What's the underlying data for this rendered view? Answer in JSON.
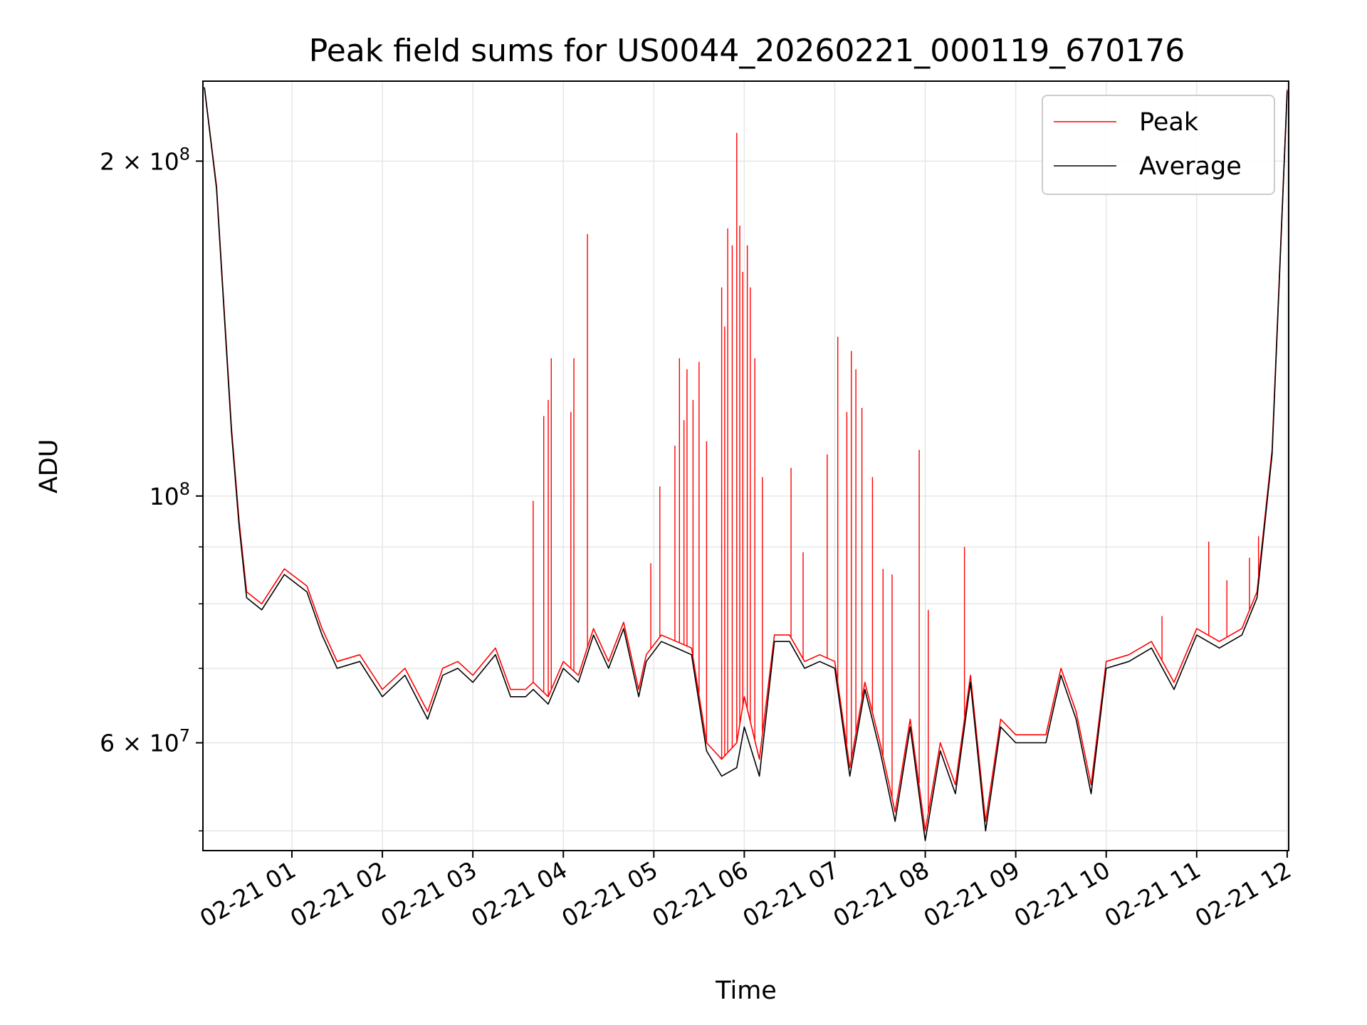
{
  "chart_data": {
    "type": "line",
    "title": "Peak field sums for US0044_20260221_000119_670176",
    "xlabel": "Time",
    "ylabel": "ADU",
    "yscale": "log",
    "xlim": [
      "02-21 00:01",
      "02-21 12:01"
    ],
    "ylim": [
      48000000,
      236000000
    ],
    "grid": true,
    "legend": {
      "location": "upper right",
      "entries": [
        "Peak",
        "Average"
      ]
    },
    "x_ticks": [
      "02-21 01",
      "02-21 02",
      "02-21 03",
      "02-21 04",
      "02-21 05",
      "02-21 06",
      "02-21 07",
      "02-21 08",
      "02-21 09",
      "02-21 10",
      "02-21 11",
      "02-21 12"
    ],
    "y_tick_labels": [
      {
        "value": 200000000,
        "mantissa": "2",
        "times": "×",
        "base": "10",
        "exponent": "8"
      },
      {
        "value": 100000000,
        "mantissa": "",
        "times": "",
        "base": "10",
        "exponent": "8"
      },
      {
        "value": 60000000,
        "mantissa": "6",
        "times": "×",
        "base": "10",
        "exponent": "7"
      }
    ],
    "y_minor_ticks": [
      50000000,
      70000000,
      80000000,
      90000000
    ],
    "series": [
      {
        "name": "Peak",
        "color": "#ff0000",
        "x": [
          "02-21 00:02",
          "02-21 00:10",
          "02-21 00:20",
          "02-21 00:25",
          "02-21 00:30",
          "02-21 00:40",
          "02-21 00:55",
          "02-21 01:10",
          "02-21 01:20",
          "02-21 01:30",
          "02-21 01:45",
          "02-21 02:00",
          "02-21 02:15",
          "02-21 02:30",
          "02-21 02:40",
          "02-21 02:50",
          "02-21 03:00",
          "02-21 03:15",
          "02-21 03:25",
          "02-21 03:35",
          "02-21 03:40",
          "02-21 03:50",
          "02-21 04:00",
          "02-21 04:10",
          "02-21 04:20",
          "02-21 04:30",
          "02-21 04:40",
          "02-21 04:50",
          "02-21 04:55",
          "02-21 05:05",
          "02-21 05:15",
          "02-21 05:25",
          "02-21 05:35",
          "02-21 05:45",
          "02-21 05:55",
          "02-21 06:00",
          "02-21 06:10",
          "02-21 06:20",
          "02-21 06:30",
          "02-21 06:40",
          "02-21 06:50",
          "02-21 07:00",
          "02-21 07:10",
          "02-21 07:20",
          "02-21 07:30",
          "02-21 07:40",
          "02-21 07:50",
          "02-21 08:00",
          "02-21 08:10",
          "02-21 08:20",
          "02-21 08:30",
          "02-21 08:40",
          "02-21 08:50",
          "02-21 09:00",
          "02-21 09:10",
          "02-21 09:20",
          "02-21 09:30",
          "02-21 09:40",
          "02-21 09:50",
          "02-21 10:00",
          "02-21 10:15",
          "02-21 10:30",
          "02-21 10:45",
          "02-21 11:00",
          "02-21 11:15",
          "02-21 11:30",
          "02-21 11:40",
          "02-21 11:50",
          "02-21 12:00"
        ],
        "y": [
          233000000,
          190000000,
          115000000,
          95000000,
          82000000,
          80000000,
          86000000,
          83000000,
          76000000,
          71000000,
          72000000,
          67000000,
          70000000,
          64000000,
          70000000,
          71000000,
          69000000,
          73000000,
          67000000,
          67000000,
          68000000,
          66000000,
          71000000,
          69000000,
          76000000,
          71000000,
          77000000,
          67000000,
          72000000,
          75000000,
          74000000,
          73000000,
          60000000,
          58000000,
          60000000,
          66000000,
          58000000,
          75000000,
          75000000,
          71000000,
          72000000,
          71000000,
          57000000,
          68000000,
          60000000,
          52000000,
          63000000,
          50000000,
          60000000,
          55000000,
          69000000,
          51000000,
          63000000,
          61000000,
          61000000,
          61000000,
          70000000,
          64000000,
          55000000,
          71000000,
          72000000,
          74000000,
          68000000,
          76000000,
          74000000,
          76000000,
          82000000,
          110000000,
          232000000
        ]
      },
      {
        "name": "Average",
        "color": "#000000",
        "x": [
          "02-21 00:02",
          "02-21 00:10",
          "02-21 00:20",
          "02-21 00:25",
          "02-21 00:30",
          "02-21 00:40",
          "02-21 00:55",
          "02-21 01:10",
          "02-21 01:20",
          "02-21 01:30",
          "02-21 01:45",
          "02-21 02:00",
          "02-21 02:15",
          "02-21 02:30",
          "02-21 02:40",
          "02-21 02:50",
          "02-21 03:00",
          "02-21 03:15",
          "02-21 03:25",
          "02-21 03:35",
          "02-21 03:40",
          "02-21 03:50",
          "02-21 04:00",
          "02-21 04:10",
          "02-21 04:20",
          "02-21 04:30",
          "02-21 04:40",
          "02-21 04:50",
          "02-21 04:55",
          "02-21 05:05",
          "02-21 05:15",
          "02-21 05:25",
          "02-21 05:35",
          "02-21 05:45",
          "02-21 05:55",
          "02-21 06:00",
          "02-21 06:10",
          "02-21 06:20",
          "02-21 06:30",
          "02-21 06:40",
          "02-21 06:50",
          "02-21 07:00",
          "02-21 07:10",
          "02-21 07:20",
          "02-21 07:30",
          "02-21 07:40",
          "02-21 07:50",
          "02-21 08:00",
          "02-21 08:10",
          "02-21 08:20",
          "02-21 08:30",
          "02-21 08:40",
          "02-21 08:50",
          "02-21 09:00",
          "02-21 09:10",
          "02-21 09:20",
          "02-21 09:30",
          "02-21 09:40",
          "02-21 09:50",
          "02-21 10:00",
          "02-21 10:15",
          "02-21 10:30",
          "02-21 10:45",
          "02-21 11:00",
          "02-21 11:15",
          "02-21 11:30",
          "02-21 11:40",
          "02-21 11:50",
          "02-21 12:00"
        ],
        "y": [
          233000000,
          189000000,
          114000000,
          94000000,
          81000000,
          79000000,
          85000000,
          82000000,
          75000000,
          70000000,
          71000000,
          66000000,
          69000000,
          63000000,
          69000000,
          70000000,
          68000000,
          72000000,
          66000000,
          66000000,
          67000000,
          65000000,
          70000000,
          68000000,
          75000000,
          70000000,
          76000000,
          66000000,
          71000000,
          74000000,
          73000000,
          72000000,
          59000000,
          56000000,
          57000000,
          62000000,
          56000000,
          74000000,
          74000000,
          70000000,
          71000000,
          70000000,
          56000000,
          67000000,
          59000000,
          51000000,
          62000000,
          49000000,
          59000000,
          54000000,
          68000000,
          50000000,
          62000000,
          60000000,
          60000000,
          60000000,
          69000000,
          63000000,
          54000000,
          70000000,
          71000000,
          73000000,
          67000000,
          75000000,
          73000000,
          75000000,
          81000000,
          109000000,
          231000000
        ]
      }
    ],
    "peak_spikes": {
      "x": [
        "02-21 03:40",
        "02-21 03:47",
        "02-21 03:50",
        "02-21 03:52",
        "02-21 04:05",
        "02-21 04:07",
        "02-21 04:16",
        "02-21 04:58",
        "02-21 05:04",
        "02-21 05:14",
        "02-21 05:17",
        "02-21 05:20",
        "02-21 05:22",
        "02-21 05:26",
        "02-21 05:30",
        "02-21 05:35",
        "02-21 05:45",
        "02-21 05:47",
        "02-21 05:49",
        "02-21 05:52",
        "02-21 05:55",
        "02-21 05:57",
        "02-21 05:59",
        "02-21 06:02",
        "02-21 06:04",
        "02-21 06:07",
        "02-21 06:12",
        "02-21 06:31",
        "02-21 06:39",
        "02-21 06:55",
        "02-21 07:02",
        "02-21 07:08",
        "02-21 07:11",
        "02-21 07:14",
        "02-21 07:18",
        "02-21 07:25",
        "02-21 07:32",
        "02-21 07:38",
        "02-21 07:56",
        "02-21 08:02",
        "02-21 08:26",
        "02-21 10:37",
        "02-21 11:08",
        "02-21 11:20",
        "02-21 11:35",
        "02-21 11:41"
      ],
      "y": [
        99000000,
        118000000,
        122000000,
        133000000,
        119000000,
        133000000,
        172000000,
        87000000,
        102000000,
        111000000,
        133000000,
        117000000,
        130000000,
        122000000,
        132000000,
        112000000,
        154000000,
        142000000,
        174000000,
        168000000,
        212000000,
        175000000,
        159000000,
        168000000,
        154000000,
        133000000,
        104000000,
        106000000,
        89000000,
        109000000,
        139000000,
        119000000,
        135000000,
        130000000,
        120000000,
        104000000,
        86000000,
        85000000,
        110000000,
        79000000,
        90000000,
        78000000,
        91000000,
        84000000,
        88000000,
        92000000
      ]
    }
  }
}
